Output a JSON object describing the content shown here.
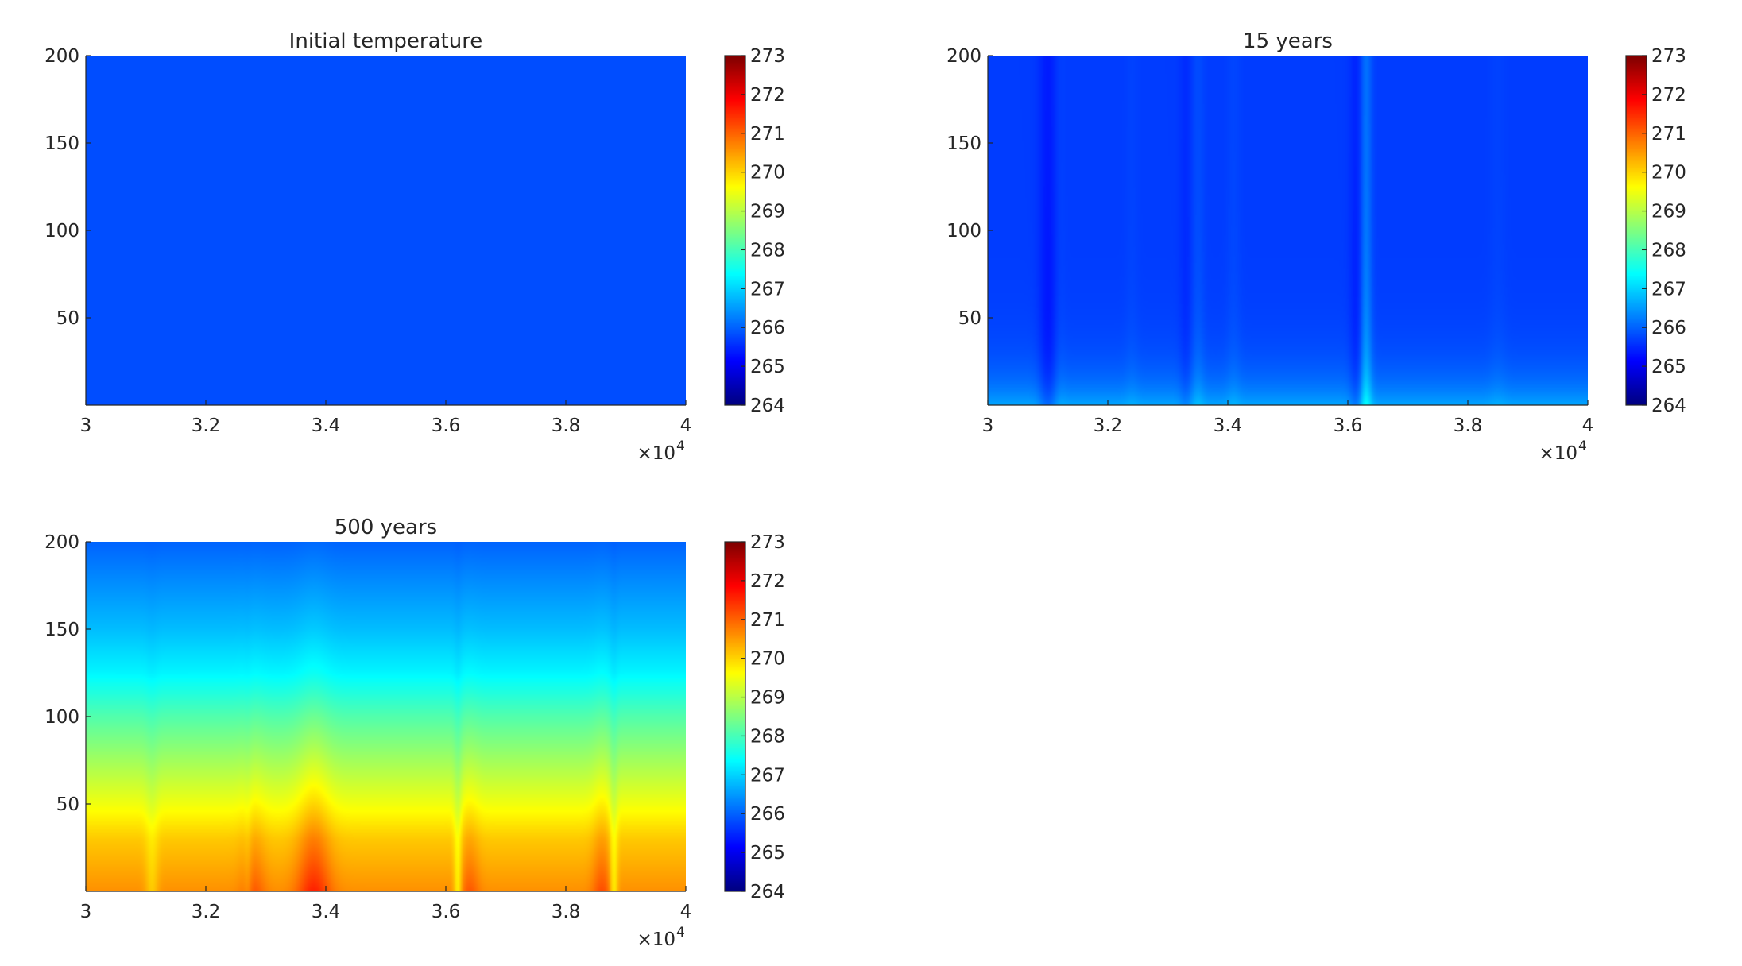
{
  "chart_data": [
    {
      "type": "heatmap",
      "panel": "top-left",
      "title": "Initial temperature",
      "xlabel": "",
      "ylabel": "",
      "xlim": [
        30000,
        40000
      ],
      "ylim": [
        0,
        200
      ],
      "x_exponent_label": "×10",
      "x_exponent_power": "4",
      "xticks": [
        30000,
        32000,
        34000,
        36000,
        38000,
        40000
      ],
      "xtick_labels": [
        "3",
        "3.2",
        "3.4",
        "3.6",
        "3.8",
        "4"
      ],
      "yticks": [
        50,
        100,
        150,
        200
      ],
      "ytick_labels": [
        "50",
        "100",
        "150",
        "200"
      ],
      "colorbar": {
        "min": 264,
        "max": 273,
        "colormap": "jet",
        "ticks": [
          264,
          265,
          266,
          267,
          268,
          269,
          270,
          271,
          272,
          273
        ],
        "tick_labels": [
          "264",
          "265",
          "266",
          "267",
          "268",
          "269",
          "270",
          "271",
          "272",
          "273"
        ]
      },
      "field": {
        "model": "uniform",
        "value": 265.8
      }
    },
    {
      "type": "heatmap",
      "panel": "top-right",
      "title": "15 years",
      "xlabel": "",
      "ylabel": "",
      "xlim": [
        30000,
        40000
      ],
      "ylim": [
        0,
        200
      ],
      "x_exponent_label": "×10",
      "x_exponent_power": "4",
      "xticks": [
        30000,
        32000,
        34000,
        36000,
        38000,
        40000
      ],
      "xtick_labels": [
        "3",
        "3.2",
        "3.4",
        "3.6",
        "3.8",
        "4"
      ],
      "yticks": [
        50,
        100,
        150,
        200
      ],
      "ytick_labels": [
        "50",
        "100",
        "150",
        "200"
      ],
      "colorbar": {
        "min": 264,
        "max": 273,
        "colormap": "jet",
        "ticks": [
          264,
          265,
          266,
          267,
          268,
          269,
          270,
          271,
          272,
          273
        ],
        "tick_labels": [
          "264",
          "265",
          "266",
          "267",
          "268",
          "269",
          "270",
          "271",
          "272",
          "273"
        ]
      },
      "field": {
        "model": "surface-warming",
        "base": 265.65,
        "surface": 266.6,
        "surface_depth": 18,
        "columns": [
          {
            "x": 31000,
            "width": 150,
            "delta": -0.5
          },
          {
            "x": 31200,
            "width": 100,
            "delta": 0.1
          },
          {
            "x": 32400,
            "width": 120,
            "delta": 0.1
          },
          {
            "x": 33300,
            "width": 110,
            "delta": -0.25
          },
          {
            "x": 33500,
            "width": 110,
            "delta": 0.25
          },
          {
            "x": 34100,
            "width": 120,
            "delta": 0.15
          },
          {
            "x": 36300,
            "width": 100,
            "delta": 0.9
          },
          {
            "x": 36150,
            "width": 120,
            "delta": -0.4
          },
          {
            "x": 38500,
            "width": 150,
            "delta": 0.1
          }
        ]
      }
    },
    {
      "type": "heatmap",
      "panel": "bottom-left",
      "title": "500 years",
      "xlabel": "",
      "ylabel": "",
      "xlim": [
        30000,
        40000
      ],
      "ylim": [
        0,
        200
      ],
      "x_exponent_label": "×10",
      "x_exponent_power": "4",
      "xticks": [
        30000,
        32000,
        34000,
        36000,
        38000,
        40000
      ],
      "xtick_labels": [
        "3",
        "3.2",
        "3.4",
        "3.6",
        "3.8",
        "4"
      ],
      "yticks": [
        50,
        100,
        150,
        200
      ],
      "ytick_labels": [
        "50",
        "100",
        "150",
        "200"
      ],
      "colorbar": {
        "min": 264,
        "max": 273,
        "colormap": "jet",
        "ticks": [
          264,
          265,
          266,
          267,
          268,
          269,
          270,
          271,
          272,
          273
        ],
        "tick_labels": [
          "264",
          "265",
          "266",
          "267",
          "268",
          "269",
          "270",
          "271",
          "272",
          "273"
        ]
      },
      "field": {
        "model": "depth-profile",
        "profile": [
          [
            0,
            270.6
          ],
          [
            30,
            270.1
          ],
          [
            50,
            269.5
          ],
          [
            100,
            268.1
          ],
          [
            125,
            267.3
          ],
          [
            150,
            266.8
          ],
          [
            200,
            266.0
          ]
        ],
        "peaks": [
          {
            "x": 33800,
            "width": 280,
            "height": 70,
            "delta": 1.0
          },
          {
            "x": 32800,
            "width": 200,
            "height": 55,
            "delta": 0.5
          },
          {
            "x": 36400,
            "width": 160,
            "height": 55,
            "delta": 0.5
          },
          {
            "x": 38600,
            "width": 160,
            "height": 60,
            "delta": 0.6
          }
        ],
        "notches": [
          {
            "x": 31100,
            "width": 110,
            "delta": -0.5
          },
          {
            "x": 32700,
            "width": 70,
            "delta": -0.3
          },
          {
            "x": 36200,
            "width": 70,
            "delta": -0.9
          },
          {
            "x": 38800,
            "width": 70,
            "delta": -0.9
          }
        ]
      }
    }
  ]
}
